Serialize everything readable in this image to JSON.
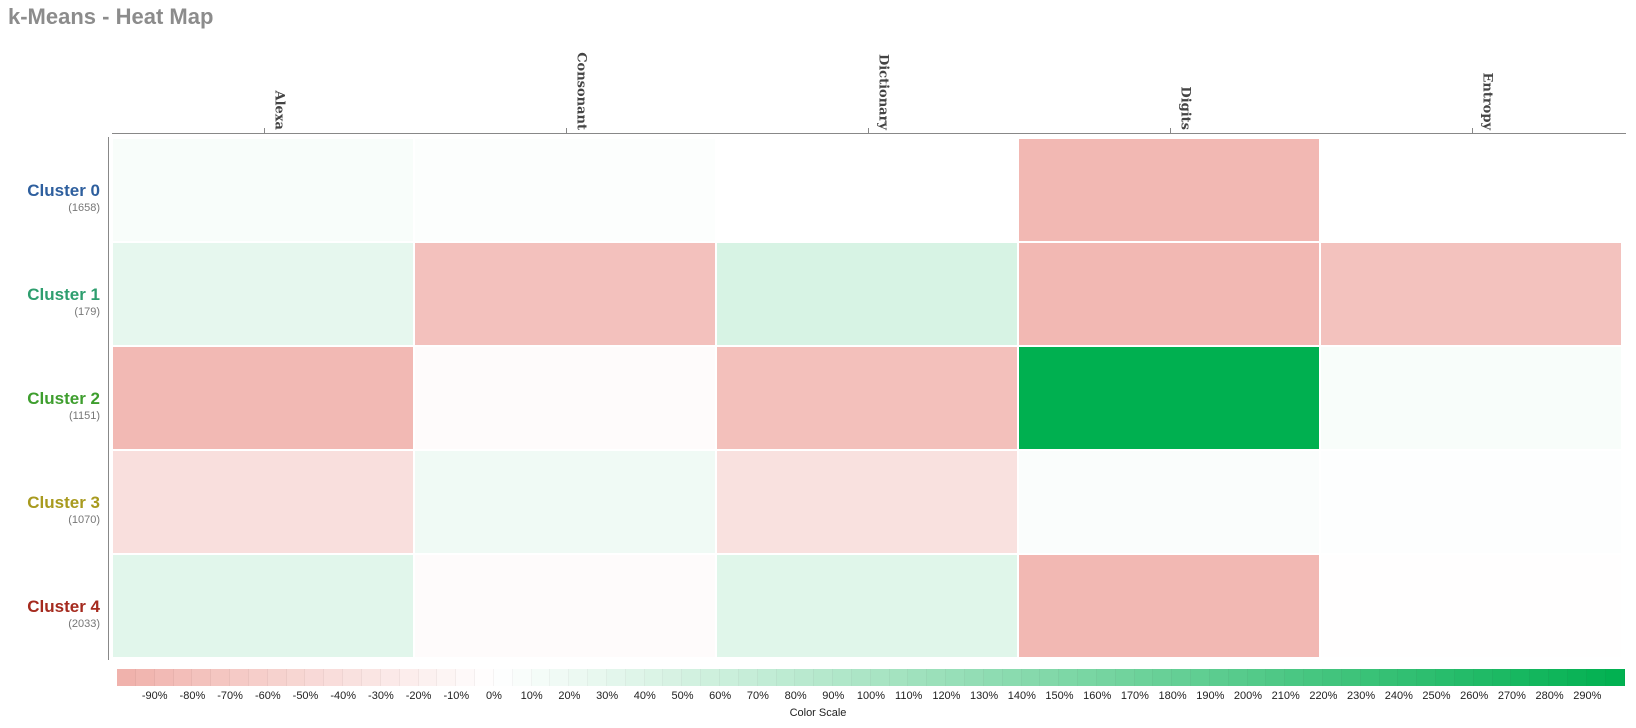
{
  "title": "k-Means - Heat Map",
  "colors": {
    "negative": "#f0b0aa",
    "neutral": "#ffffff",
    "positive": "#00b050"
  },
  "chart_data": {
    "type": "heatmap",
    "columns": [
      "Alexa",
      "Consonant",
      "Dictionary",
      "Digits",
      "Entropy"
    ],
    "rows": [
      {
        "name": "Cluster 0",
        "count": "(1658)",
        "color": "#2e5f9e",
        "values": [
          8,
          3,
          0,
          -90,
          0
        ]
      },
      {
        "name": "Cluster 1",
        "count": "(179)",
        "color": "#2e9e6e",
        "values": [
          30,
          -78,
          47,
          -90,
          -77
        ]
      },
      {
        "name": "Cluster 2",
        "count": "(1151)",
        "color": "#3e9e2e",
        "values": [
          -88,
          -5,
          -80,
          300,
          8
        ]
      },
      {
        "name": "Cluster 3",
        "count": "(1070)",
        "color": "#a89a1e",
        "values": [
          -40,
          18,
          -38,
          6,
          2
        ]
      },
      {
        "name": "Cluster 4",
        "count": "(2033)",
        "color": "#a52a1e",
        "values": [
          35,
          -5,
          36,
          -90,
          -1
        ]
      }
    ],
    "color_scale": {
      "title": "Color Scale",
      "min": -100,
      "max": 300,
      "ticks": [
        "-90%",
        "-80%",
        "-70%",
        "-60%",
        "-50%",
        "-40%",
        "-30%",
        "-20%",
        "-10%",
        "0%",
        "10%",
        "20%",
        "30%",
        "40%",
        "50%",
        "60%",
        "70%",
        "80%",
        "90%",
        "100%",
        "110%",
        "120%",
        "130%",
        "140%",
        "150%",
        "160%",
        "170%",
        "180%",
        "190%",
        "200%",
        "210%",
        "220%",
        "230%",
        "240%",
        "250%",
        "260%",
        "270%",
        "280%",
        "290%"
      ],
      "tick_values": [
        -90,
        -80,
        -70,
        -60,
        -50,
        -40,
        -30,
        -20,
        -10,
        0,
        10,
        20,
        30,
        40,
        50,
        60,
        70,
        80,
        90,
        100,
        110,
        120,
        130,
        140,
        150,
        160,
        170,
        180,
        190,
        200,
        210,
        220,
        230,
        240,
        250,
        260,
        270,
        280,
        290
      ]
    }
  }
}
